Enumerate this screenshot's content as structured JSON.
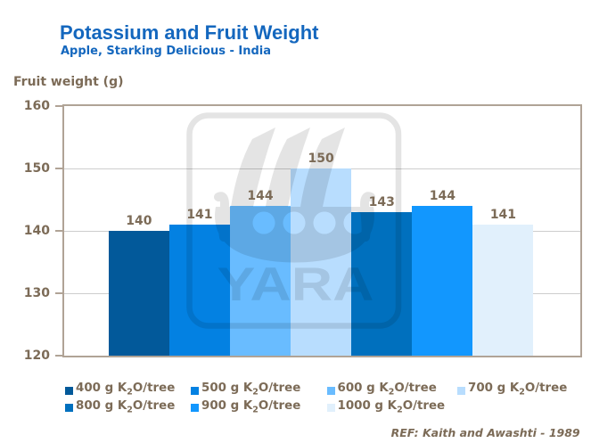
{
  "header": {
    "title": "Potassium and Fruit Weight",
    "subtitle": "Apple, Starking Delicious - India"
  },
  "y_axis_title": "Fruit weight (g)",
  "reference_note": "REF: Kaith and Awashti - 1989",
  "watermark_text": "YARA",
  "colors": {
    "heading_blue": "#1467BE",
    "text_brown": "#7C6B57",
    "axis_border": "#B0A396",
    "gridline": "#CDCDCD",
    "background": "#FFFFFF"
  },
  "chart_data": {
    "type": "bar",
    "title": "Potassium and Fruit Weight",
    "subtitle": "Apple, Starking Delicious - India",
    "xlabel": "",
    "ylabel": "Fruit weight (g)",
    "ylim": [
      120,
      160
    ],
    "yticks": [
      120,
      130,
      140,
      150,
      160
    ],
    "grid": true,
    "legend_position": "bottom",
    "categories": [
      "400 g K₂O/tree",
      "500 g K₂O/tree",
      "600 g K₂O/tree",
      "700 g K₂O/tree",
      "800 g K₂O/tree",
      "900 g K₂O/tree",
      "1000 g K₂O/tree"
    ],
    "values": [
      140,
      141,
      144,
      150,
      143,
      144,
      141
    ],
    "bar_colors": [
      "#02599A",
      "#0381E2",
      "#69BCFF",
      "#B8DDFE",
      "#0070BE",
      "#1297FE",
      "#E1F0FC"
    ]
  },
  "legend": {
    "items": [
      {
        "amount": "400",
        "sub": "2",
        "prefix": " g K",
        "suffix": "O/tree",
        "color": "#02599A",
        "row": 0,
        "col": 0
      },
      {
        "amount": "500",
        "sub": "2",
        "prefix": " g K",
        "suffix": "O/tree",
        "color": "#0381E2",
        "row": 0,
        "col": 1
      },
      {
        "amount": "600",
        "sub": "2",
        "prefix": " g K",
        "suffix": "O/tree",
        "color": "#69BCFF",
        "row": 0,
        "col": 2
      },
      {
        "amount": "700",
        "sub": "2",
        "prefix": " g K",
        "suffix": "O/tree",
        "color": "#B8DDFE",
        "row": 0,
        "col": 3
      },
      {
        "amount": "800",
        "sub": "2",
        "prefix": " g K",
        "suffix": "O/tree",
        "color": "#0070BE",
        "row": 1,
        "col": 0
      },
      {
        "amount": "900",
        "sub": "2",
        "prefix": " g K",
        "suffix": "O/tree",
        "color": "#1297FE",
        "row": 1,
        "col": 1
      },
      {
        "amount": "1000",
        "sub": "2",
        "prefix": " g K",
        "suffix": "O/tree",
        "color": "#E1F0FC",
        "row": 1,
        "col": 2
      }
    ]
  }
}
